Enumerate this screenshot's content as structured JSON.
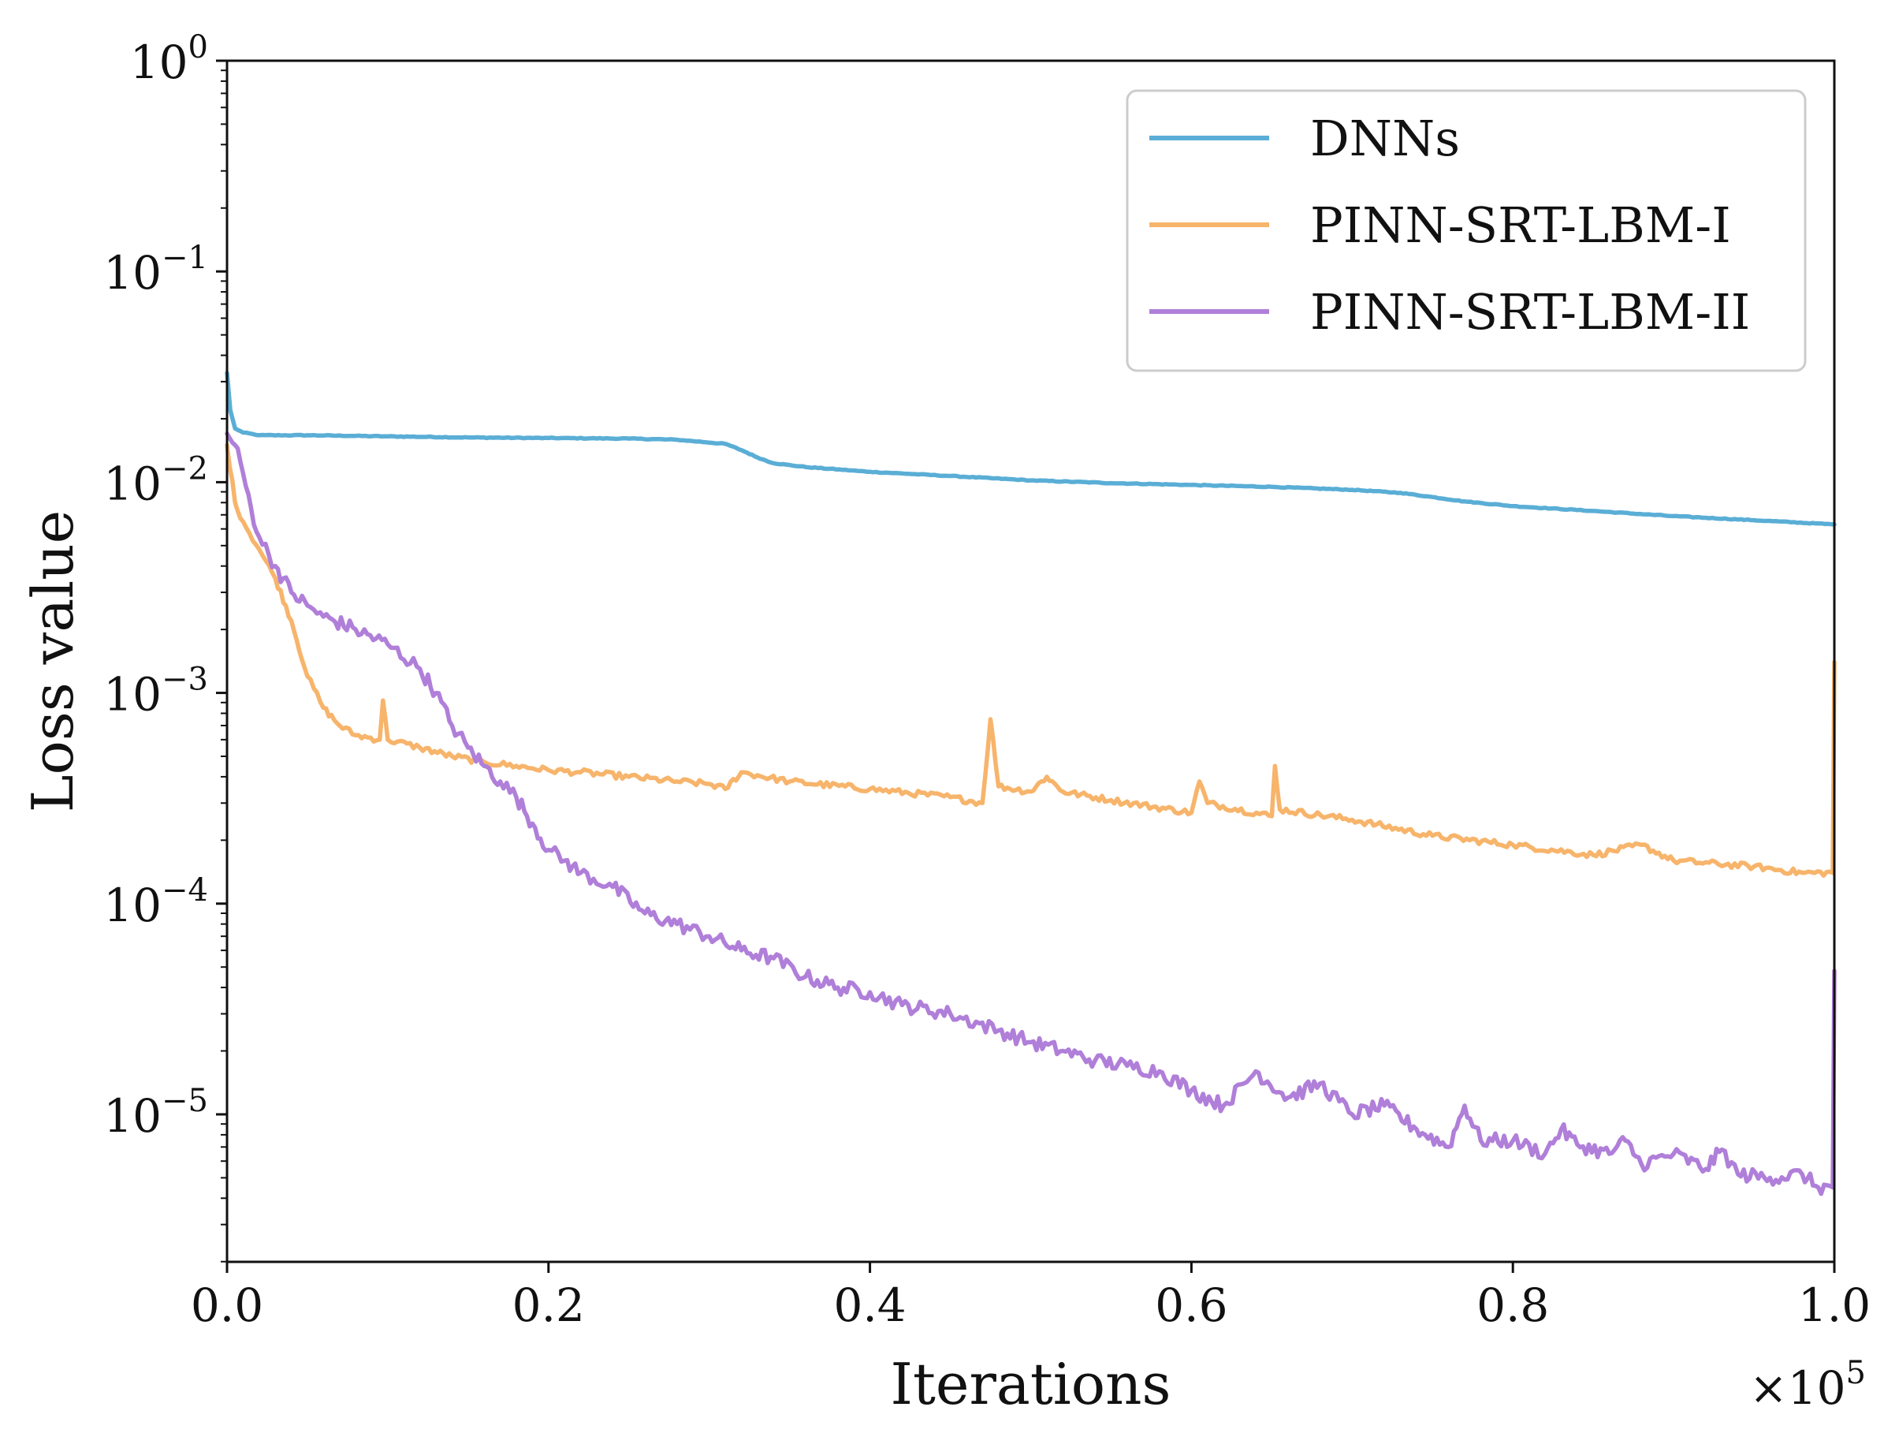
{
  "chart_data": {
    "type": "line",
    "xlabel": "Iterations",
    "ylabel": "Loss value",
    "x_multiplier": {
      "base": "×10",
      "exp": "5"
    },
    "xlim": [
      0,
      1
    ],
    "ylim_log10": [
      -5.7,
      0
    ],
    "yscale": "log",
    "legend_position": "top-right",
    "x_ticks": [
      {
        "value": 0.0,
        "label": "0.0"
      },
      {
        "value": 0.2,
        "label": "0.2"
      },
      {
        "value": 0.4,
        "label": "0.4"
      },
      {
        "value": 0.6,
        "label": "0.6"
      },
      {
        "value": 0.8,
        "label": "0.8"
      },
      {
        "value": 1.0,
        "label": "1.0"
      }
    ],
    "y_ticks": [
      {
        "value_log10": 0,
        "base": "10",
        "exp": "0"
      },
      {
        "value_log10": -1,
        "base": "10",
        "exp": "−1"
      },
      {
        "value_log10": -2,
        "base": "10",
        "exp": "−2"
      },
      {
        "value_log10": -3,
        "base": "10",
        "exp": "−3"
      },
      {
        "value_log10": -4,
        "base": "10",
        "exp": "−4"
      },
      {
        "value_log10": -5,
        "base": "10",
        "exp": "−5"
      }
    ],
    "series": [
      {
        "name": "DNNs",
        "color": "#5aaed6",
        "x": [
          0,
          0.002,
          0.005,
          0.01,
          0.02,
          0.05,
          0.1,
          0.15,
          0.2,
          0.25,
          0.28,
          0.31,
          0.32,
          0.33,
          0.34,
          0.36,
          0.4,
          0.45,
          0.5,
          0.55,
          0.6,
          0.65,
          0.7,
          0.73,
          0.75,
          0.77,
          0.8,
          0.85,
          0.9,
          0.95,
          1.0
        ],
        "y": [
          0.033,
          0.022,
          0.018,
          0.0172,
          0.0167,
          0.0167,
          0.0165,
          0.0163,
          0.0162,
          0.0161,
          0.0159,
          0.0152,
          0.0142,
          0.0131,
          0.0123,
          0.0118,
          0.0112,
          0.0107,
          0.0102,
          0.0099,
          0.0097,
          0.0095,
          0.0092,
          0.0089,
          0.0085,
          0.0081,
          0.0077,
          0.0073,
          0.0069,
          0.0066,
          0.0063
        ]
      },
      {
        "name": "PINN-SRT-LBM-I",
        "color": "#f7b46b",
        "x": [
          0,
          0.005,
          0.01,
          0.02,
          0.03,
          0.04,
          0.05,
          0.06,
          0.07,
          0.08,
          0.095,
          0.097,
          0.1,
          0.12,
          0.14,
          0.16,
          0.18,
          0.2,
          0.22,
          0.25,
          0.28,
          0.3,
          0.31,
          0.32,
          0.35,
          0.4,
          0.45,
          0.47,
          0.475,
          0.48,
          0.5,
          0.51,
          0.52,
          0.55,
          0.6,
          0.605,
          0.61,
          0.65,
          0.652,
          0.655,
          0.7,
          0.75,
          0.8,
          0.85,
          0.88,
          0.9,
          0.95,
          0.98,
          0.999,
          1.0
        ],
        "y": [
          0.015,
          0.008,
          0.0065,
          0.0048,
          0.0035,
          0.0022,
          0.0012,
          0.00085,
          0.0007,
          0.00063,
          0.0006,
          0.00092,
          0.0006,
          0.00055,
          0.0005,
          0.00047,
          0.00045,
          0.00043,
          0.00042,
          0.0004,
          0.00038,
          0.00037,
          0.00035,
          0.00042,
          0.00038,
          0.00035,
          0.00032,
          0.0003,
          0.00075,
          0.00036,
          0.00034,
          0.0004,
          0.00034,
          0.00031,
          0.00027,
          0.00038,
          0.0003,
          0.00026,
          0.00045,
          0.00028,
          0.00025,
          0.00021,
          0.00019,
          0.00017,
          0.00019,
          0.00016,
          0.00015,
          0.00014,
          0.00014,
          0.0014
        ]
      },
      {
        "name": "PINN-SRT-LBM-II",
        "color": "#b07fd9",
        "x": [
          0,
          0.005,
          0.01,
          0.015,
          0.02,
          0.03,
          0.04,
          0.05,
          0.06,
          0.08,
          0.1,
          0.12,
          0.13,
          0.14,
          0.15,
          0.16,
          0.17,
          0.18,
          0.19,
          0.2,
          0.21,
          0.22,
          0.24,
          0.26,
          0.28,
          0.3,
          0.32,
          0.34,
          0.36,
          0.38,
          0.4,
          0.42,
          0.45,
          0.48,
          0.5,
          0.52,
          0.54,
          0.56,
          0.58,
          0.6,
          0.62,
          0.64,
          0.66,
          0.68,
          0.7,
          0.72,
          0.74,
          0.76,
          0.77,
          0.78,
          0.8,
          0.82,
          0.83,
          0.84,
          0.86,
          0.87,
          0.88,
          0.9,
          0.92,
          0.93,
          0.94,
          0.96,
          0.98,
          0.99,
          0.999,
          1.0
        ],
        "y": [
          0.017,
          0.015,
          0.011,
          0.0075,
          0.0055,
          0.004,
          0.003,
          0.0026,
          0.0023,
          0.002,
          0.0017,
          0.0013,
          0.001,
          0.0007,
          0.00055,
          0.00045,
          0.00038,
          0.00032,
          0.00024,
          0.00018,
          0.00016,
          0.00014,
          0.00012,
          9e-05,
          8e-05,
          7e-05,
          6e-05,
          5.5e-05,
          4.5e-05,
          4e-05,
          3.8e-05,
          3.3e-05,
          3e-05,
          2.5e-05,
          2.2e-05,
          2e-05,
          1.8e-05,
          1.7e-05,
          1.6e-05,
          1.3e-05,
          1.1e-05,
          1.6e-05,
          1.2e-05,
          1.4e-05,
          1e-05,
          1.1e-05,
          8.5e-06,
          7e-06,
          1.1e-05,
          7.5e-06,
          7.5e-06,
          6.5e-06,
          8.5e-06,
          7.2e-06,
          6.5e-06,
          7.5e-06,
          5.8e-06,
          6.5e-06,
          5.5e-06,
          6.8e-06,
          5.2e-06,
          5e-06,
          5.2e-06,
          4.5e-06,
          4.5e-06,
          4.8e-05
        ]
      }
    ]
  }
}
